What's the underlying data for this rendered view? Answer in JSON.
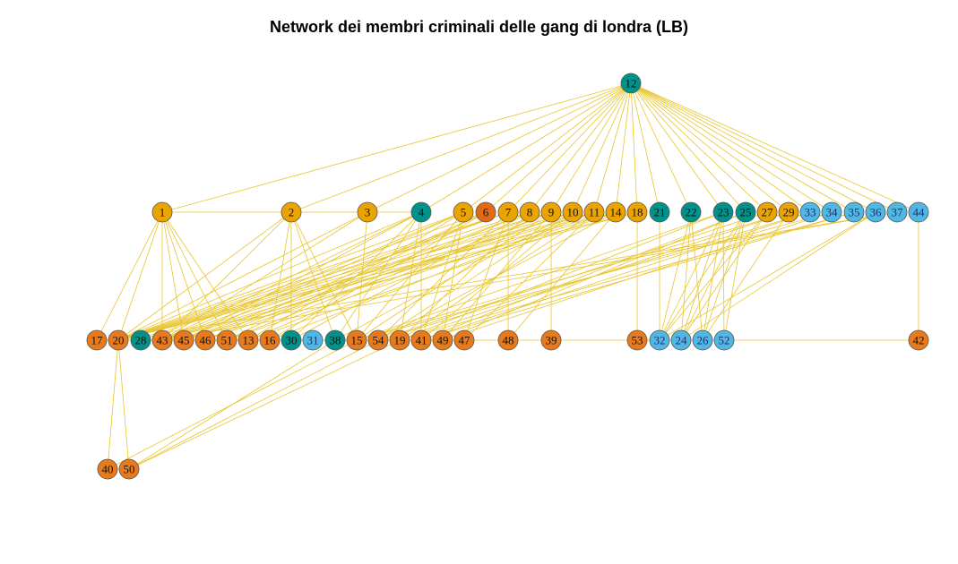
{
  "title": "Network dei membri criminali delle gang di londra (LB)",
  "colors": {
    "edge": "#E8C52E",
    "node_stroke": "#555555",
    "groups": {
      "teal": "#00928A",
      "gold": "#EAA300",
      "orange": "#E87A1C",
      "red_orange": "#E06A16",
      "light_blue": "#4FB7E2"
    }
  },
  "nodes": [
    {
      "id": "12",
      "group": "teal"
    },
    {
      "id": "1",
      "group": "gold"
    },
    {
      "id": "2",
      "group": "gold"
    },
    {
      "id": "3",
      "group": "gold"
    },
    {
      "id": "4",
      "group": "teal"
    },
    {
      "id": "5",
      "group": "gold"
    },
    {
      "id": "6",
      "group": "red_orange"
    },
    {
      "id": "7",
      "group": "gold"
    },
    {
      "id": "8",
      "group": "gold"
    },
    {
      "id": "9",
      "group": "gold"
    },
    {
      "id": "10",
      "group": "gold"
    },
    {
      "id": "11",
      "group": "gold"
    },
    {
      "id": "14",
      "group": "gold"
    },
    {
      "id": "18",
      "group": "gold"
    },
    {
      "id": "21",
      "group": "teal"
    },
    {
      "id": "22",
      "group": "teal"
    },
    {
      "id": "23",
      "group": "teal"
    },
    {
      "id": "25",
      "group": "teal"
    },
    {
      "id": "27",
      "group": "gold"
    },
    {
      "id": "29",
      "group": "gold"
    },
    {
      "id": "33",
      "group": "light_blue"
    },
    {
      "id": "34",
      "group": "light_blue"
    },
    {
      "id": "35",
      "group": "light_blue"
    },
    {
      "id": "36",
      "group": "light_blue"
    },
    {
      "id": "37",
      "group": "light_blue"
    },
    {
      "id": "44",
      "group": "light_blue"
    },
    {
      "id": "17",
      "group": "orange"
    },
    {
      "id": "20",
      "group": "orange"
    },
    {
      "id": "28",
      "group": "teal"
    },
    {
      "id": "43",
      "group": "orange"
    },
    {
      "id": "45",
      "group": "orange"
    },
    {
      "id": "46",
      "group": "orange"
    },
    {
      "id": "51",
      "group": "orange"
    },
    {
      "id": "13",
      "group": "orange"
    },
    {
      "id": "16",
      "group": "orange"
    },
    {
      "id": "30",
      "group": "teal"
    },
    {
      "id": "31",
      "group": "light_blue"
    },
    {
      "id": "38",
      "group": "teal"
    },
    {
      "id": "15",
      "group": "orange"
    },
    {
      "id": "54",
      "group": "orange"
    },
    {
      "id": "19",
      "group": "orange"
    },
    {
      "id": "41",
      "group": "orange"
    },
    {
      "id": "49",
      "group": "orange"
    },
    {
      "id": "47",
      "group": "orange"
    },
    {
      "id": "48",
      "group": "orange"
    },
    {
      "id": "39",
      "group": "orange"
    },
    {
      "id": "53",
      "group": "orange"
    },
    {
      "id": "32",
      "group": "light_blue"
    },
    {
      "id": "24",
      "group": "light_blue"
    },
    {
      "id": "26",
      "group": "light_blue"
    },
    {
      "id": "52",
      "group": "light_blue"
    },
    {
      "id": "42",
      "group": "orange"
    },
    {
      "id": "40",
      "group": "orange"
    },
    {
      "id": "50",
      "group": "orange"
    }
  ],
  "edges": [
    [
      "12",
      "1"
    ],
    [
      "12",
      "2"
    ],
    [
      "12",
      "3"
    ],
    [
      "12",
      "4"
    ],
    [
      "12",
      "5"
    ],
    [
      "12",
      "6"
    ],
    [
      "12",
      "7"
    ],
    [
      "12",
      "8"
    ],
    [
      "12",
      "9"
    ],
    [
      "12",
      "10"
    ],
    [
      "12",
      "11"
    ],
    [
      "12",
      "14"
    ],
    [
      "12",
      "18"
    ],
    [
      "12",
      "21"
    ],
    [
      "12",
      "22"
    ],
    [
      "12",
      "23"
    ],
    [
      "12",
      "25"
    ],
    [
      "12",
      "27"
    ],
    [
      "12",
      "29"
    ],
    [
      "12",
      "33"
    ],
    [
      "12",
      "34"
    ],
    [
      "12",
      "35"
    ],
    [
      "12",
      "36"
    ],
    [
      "12",
      "37"
    ],
    [
      "12",
      "44"
    ],
    [
      "1",
      "2"
    ],
    [
      "2",
      "3"
    ],
    [
      "3",
      "4"
    ],
    [
      "1",
      "17"
    ],
    [
      "1",
      "20"
    ],
    [
      "1",
      "43"
    ],
    [
      "1",
      "45"
    ],
    [
      "1",
      "46"
    ],
    [
      "1",
      "51"
    ],
    [
      "1",
      "13"
    ],
    [
      "2",
      "20"
    ],
    [
      "2",
      "43"
    ],
    [
      "2",
      "16"
    ],
    [
      "2",
      "30"
    ],
    [
      "2",
      "38"
    ],
    [
      "2",
      "15"
    ],
    [
      "3",
      "15"
    ],
    [
      "3",
      "20"
    ],
    [
      "3",
      "43"
    ],
    [
      "4",
      "20"
    ],
    [
      "4",
      "43"
    ],
    [
      "4",
      "45"
    ],
    [
      "4",
      "30"
    ],
    [
      "4",
      "38"
    ],
    [
      "4",
      "41"
    ],
    [
      "4",
      "19"
    ],
    [
      "5",
      "20"
    ],
    [
      "5",
      "43"
    ],
    [
      "5",
      "45"
    ],
    [
      "5",
      "13"
    ],
    [
      "5",
      "15"
    ],
    [
      "5",
      "41"
    ],
    [
      "5",
      "49"
    ],
    [
      "6",
      "20"
    ],
    [
      "6",
      "46"
    ],
    [
      "6",
      "51"
    ],
    [
      "6",
      "16"
    ],
    [
      "7",
      "48"
    ],
    [
      "7",
      "28"
    ],
    [
      "7",
      "43"
    ],
    [
      "7",
      "20"
    ],
    [
      "7",
      "54"
    ],
    [
      "7",
      "47"
    ],
    [
      "8",
      "20"
    ],
    [
      "8",
      "45"
    ],
    [
      "8",
      "46"
    ],
    [
      "8",
      "30"
    ],
    [
      "8",
      "19"
    ],
    [
      "9",
      "20"
    ],
    [
      "9",
      "43"
    ],
    [
      "9",
      "51"
    ],
    [
      "9",
      "13"
    ],
    [
      "9",
      "15"
    ],
    [
      "9",
      "49"
    ],
    [
      "9",
      "39"
    ],
    [
      "10",
      "20"
    ],
    [
      "10",
      "45"
    ],
    [
      "10",
      "46"
    ],
    [
      "10",
      "38"
    ],
    [
      "10",
      "54"
    ],
    [
      "10",
      "41"
    ],
    [
      "11",
      "20"
    ],
    [
      "11",
      "43"
    ],
    [
      "11",
      "51"
    ],
    [
      "11",
      "16"
    ],
    [
      "11",
      "19"
    ],
    [
      "11",
      "47"
    ],
    [
      "14",
      "20"
    ],
    [
      "14",
      "45"
    ],
    [
      "14",
      "13"
    ],
    [
      "14",
      "54"
    ],
    [
      "14",
      "48"
    ],
    [
      "18",
      "53"
    ],
    [
      "18",
      "20"
    ],
    [
      "18",
      "43"
    ],
    [
      "21",
      "32"
    ],
    [
      "22",
      "32"
    ],
    [
      "22",
      "24"
    ],
    [
      "22",
      "26"
    ],
    [
      "23",
      "32"
    ],
    [
      "23",
      "24"
    ],
    [
      "23",
      "26"
    ],
    [
      "23",
      "52"
    ],
    [
      "23",
      "15"
    ],
    [
      "23",
      "19"
    ],
    [
      "25",
      "32"
    ],
    [
      "25",
      "24"
    ],
    [
      "25",
      "26"
    ],
    [
      "25",
      "52"
    ],
    [
      "25",
      "41"
    ],
    [
      "25",
      "49"
    ],
    [
      "27",
      "32"
    ],
    [
      "27",
      "24"
    ],
    [
      "27",
      "54"
    ],
    [
      "29",
      "26"
    ],
    [
      "29",
      "15"
    ],
    [
      "29",
      "19"
    ],
    [
      "33",
      "41"
    ],
    [
      "33",
      "54"
    ],
    [
      "34",
      "49"
    ],
    [
      "34",
      "15"
    ],
    [
      "35",
      "19"
    ],
    [
      "35",
      "41"
    ],
    [
      "36",
      "32"
    ],
    [
      "36",
      "24"
    ],
    [
      "37",
      "20"
    ],
    [
      "37",
      "43"
    ],
    [
      "44",
      "42"
    ],
    [
      "17",
      "20"
    ],
    [
      "20",
      "28"
    ],
    [
      "28",
      "43"
    ],
    [
      "43",
      "45"
    ],
    [
      "45",
      "46"
    ],
    [
      "46",
      "51"
    ],
    [
      "51",
      "13"
    ],
    [
      "13",
      "16"
    ],
    [
      "16",
      "30"
    ],
    [
      "30",
      "31"
    ],
    [
      "31",
      "38"
    ],
    [
      "38",
      "15"
    ],
    [
      "15",
      "54"
    ],
    [
      "54",
      "19"
    ],
    [
      "19",
      "41"
    ],
    [
      "41",
      "49"
    ],
    [
      "49",
      "47"
    ],
    [
      "47",
      "48"
    ],
    [
      "48",
      "39"
    ],
    [
      "39",
      "53"
    ],
    [
      "53",
      "32"
    ],
    [
      "32",
      "24"
    ],
    [
      "24",
      "26"
    ],
    [
      "26",
      "52"
    ],
    [
      "52",
      "42"
    ],
    [
      "20",
      "40"
    ],
    [
      "20",
      "50"
    ],
    [
      "40",
      "50"
    ],
    [
      "50",
      "54"
    ],
    [
      "50",
      "19"
    ],
    [
      "40",
      "15"
    ],
    [
      "50",
      "38"
    ]
  ]
}
